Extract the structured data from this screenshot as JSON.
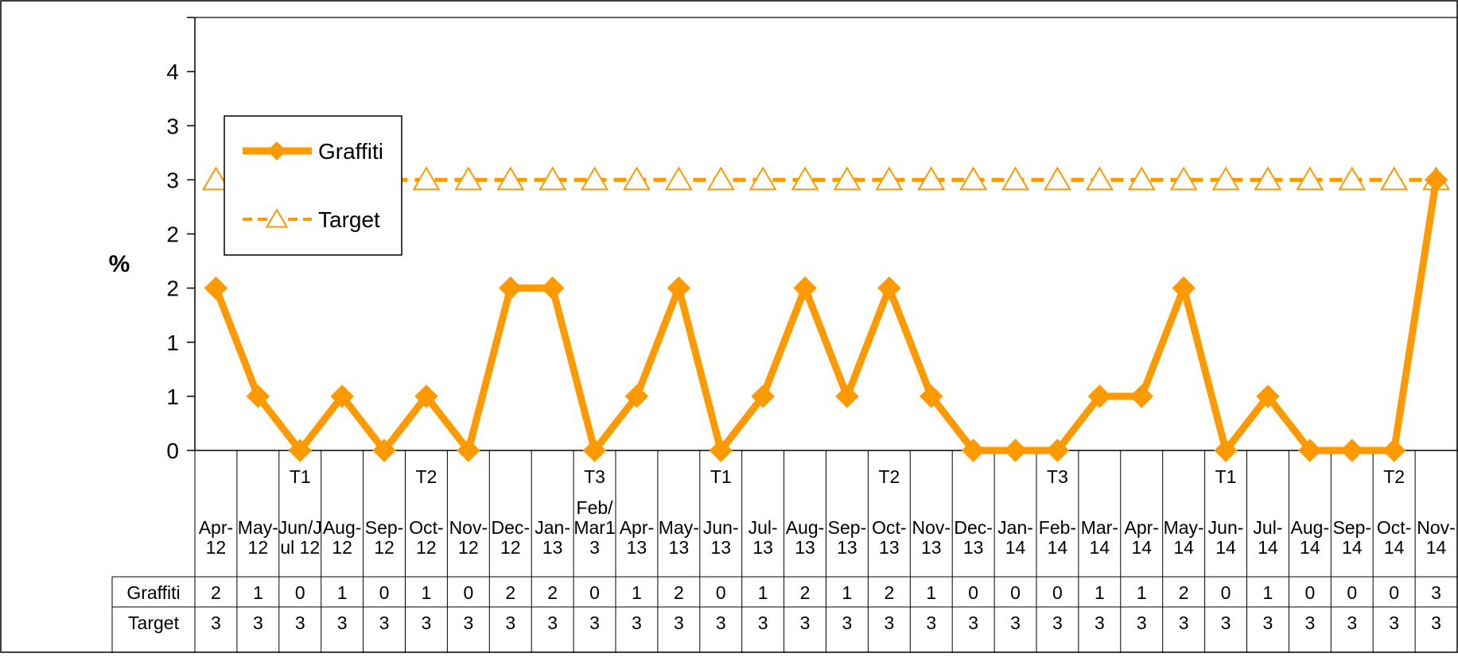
{
  "chart_data": {
    "type": "line",
    "title": "",
    "xlabel": "",
    "ylabel": "%",
    "ylim": [
      0,
      4
    ],
    "yticks": [
      {
        "value": 0,
        "label": "0"
      },
      {
        "value": 0.5,
        "label": "1"
      },
      {
        "value": 1.0,
        "label": "1"
      },
      {
        "value": 1.5,
        "label": "2"
      },
      {
        "value": 2.0,
        "label": "2"
      },
      {
        "value": 2.5,
        "label": "3"
      },
      {
        "value": 3.0,
        "label": "3"
      },
      {
        "value": 3.5,
        "label": "4"
      }
    ],
    "grid": false,
    "legend_position": "top-left",
    "categories": [
      [
        "Apr-",
        "12"
      ],
      [
        "May-",
        "12"
      ],
      [
        "Jun/J",
        "ul 12"
      ],
      [
        "Aug-",
        "12"
      ],
      [
        "Sep-",
        "12"
      ],
      [
        "Oct-",
        "12"
      ],
      [
        "Nov-",
        "12"
      ],
      [
        "Dec-",
        "12"
      ],
      [
        "Jan-",
        "13"
      ],
      [
        "Feb/",
        "Mar1",
        "3"
      ],
      [
        "Apr-",
        "13"
      ],
      [
        "May-",
        "13"
      ],
      [
        "Jun-",
        "13"
      ],
      [
        "Jul-",
        "13"
      ],
      [
        "Aug-",
        "13"
      ],
      [
        "Sep-",
        "13"
      ],
      [
        "Oct-",
        "13"
      ],
      [
        "Nov-",
        "13"
      ],
      [
        "Dec-",
        "13"
      ],
      [
        "Jan-",
        "14"
      ],
      [
        "Feb-",
        "14"
      ],
      [
        "Mar-",
        "14"
      ],
      [
        "Apr-",
        "14"
      ],
      [
        "May-",
        "14"
      ],
      [
        "Jun-",
        "14"
      ],
      [
        "Jul-",
        "14"
      ],
      [
        "Aug-",
        "14"
      ],
      [
        "Sep-",
        "14"
      ],
      [
        "Oct-",
        "14"
      ],
      [
        "Nov-",
        "14"
      ]
    ],
    "term_labels": [
      "",
      "",
      "T1",
      "",
      "",
      "T2",
      "",
      "",
      "",
      "T3",
      "",
      "",
      "T1",
      "",
      "",
      "",
      "T2",
      "",
      "",
      "",
      "T3",
      "",
      "",
      "",
      "T1",
      "",
      "",
      "",
      "T2",
      ""
    ],
    "series": [
      {
        "name": "Graffiti",
        "color": "#FF9900",
        "marker": "diamond",
        "line": "solid",
        "values": [
          1.5,
          0.5,
          0.0,
          0.5,
          0.0,
          0.5,
          0.0,
          1.5,
          1.5,
          0.0,
          0.5,
          1.5,
          0.0,
          0.5,
          1.5,
          0.5,
          1.5,
          0.5,
          0.0,
          0.0,
          0.0,
          0.5,
          0.5,
          1.5,
          0.0,
          0.5,
          0.0,
          0.0,
          0.0,
          2.5
        ],
        "table_values": [
          "2",
          "1",
          "0",
          "1",
          "0",
          "1",
          "0",
          "2",
          "2",
          "0",
          "1",
          "2",
          "0",
          "1",
          "2",
          "1",
          "2",
          "1",
          "0",
          "0",
          "0",
          "1",
          "1",
          "2",
          "0",
          "1",
          "0",
          "0",
          "0",
          "3"
        ]
      },
      {
        "name": "Target",
        "color": "#FF9900",
        "marker": "triangle-open",
        "line": "dashed",
        "values": [
          2.5,
          2.5,
          2.5,
          2.5,
          2.5,
          2.5,
          2.5,
          2.5,
          2.5,
          2.5,
          2.5,
          2.5,
          2.5,
          2.5,
          2.5,
          2.5,
          2.5,
          2.5,
          2.5,
          2.5,
          2.5,
          2.5,
          2.5,
          2.5,
          2.5,
          2.5,
          2.5,
          2.5,
          2.5,
          2.5
        ],
        "table_values": [
          "3",
          "3",
          "3",
          "3",
          "3",
          "3",
          "3",
          "3",
          "3",
          "3",
          "3",
          "3",
          "3",
          "3",
          "3",
          "3",
          "3",
          "3",
          "3",
          "3",
          "3",
          "3",
          "3",
          "3",
          "3",
          "3",
          "3",
          "3",
          "3",
          "3"
        ]
      }
    ]
  }
}
